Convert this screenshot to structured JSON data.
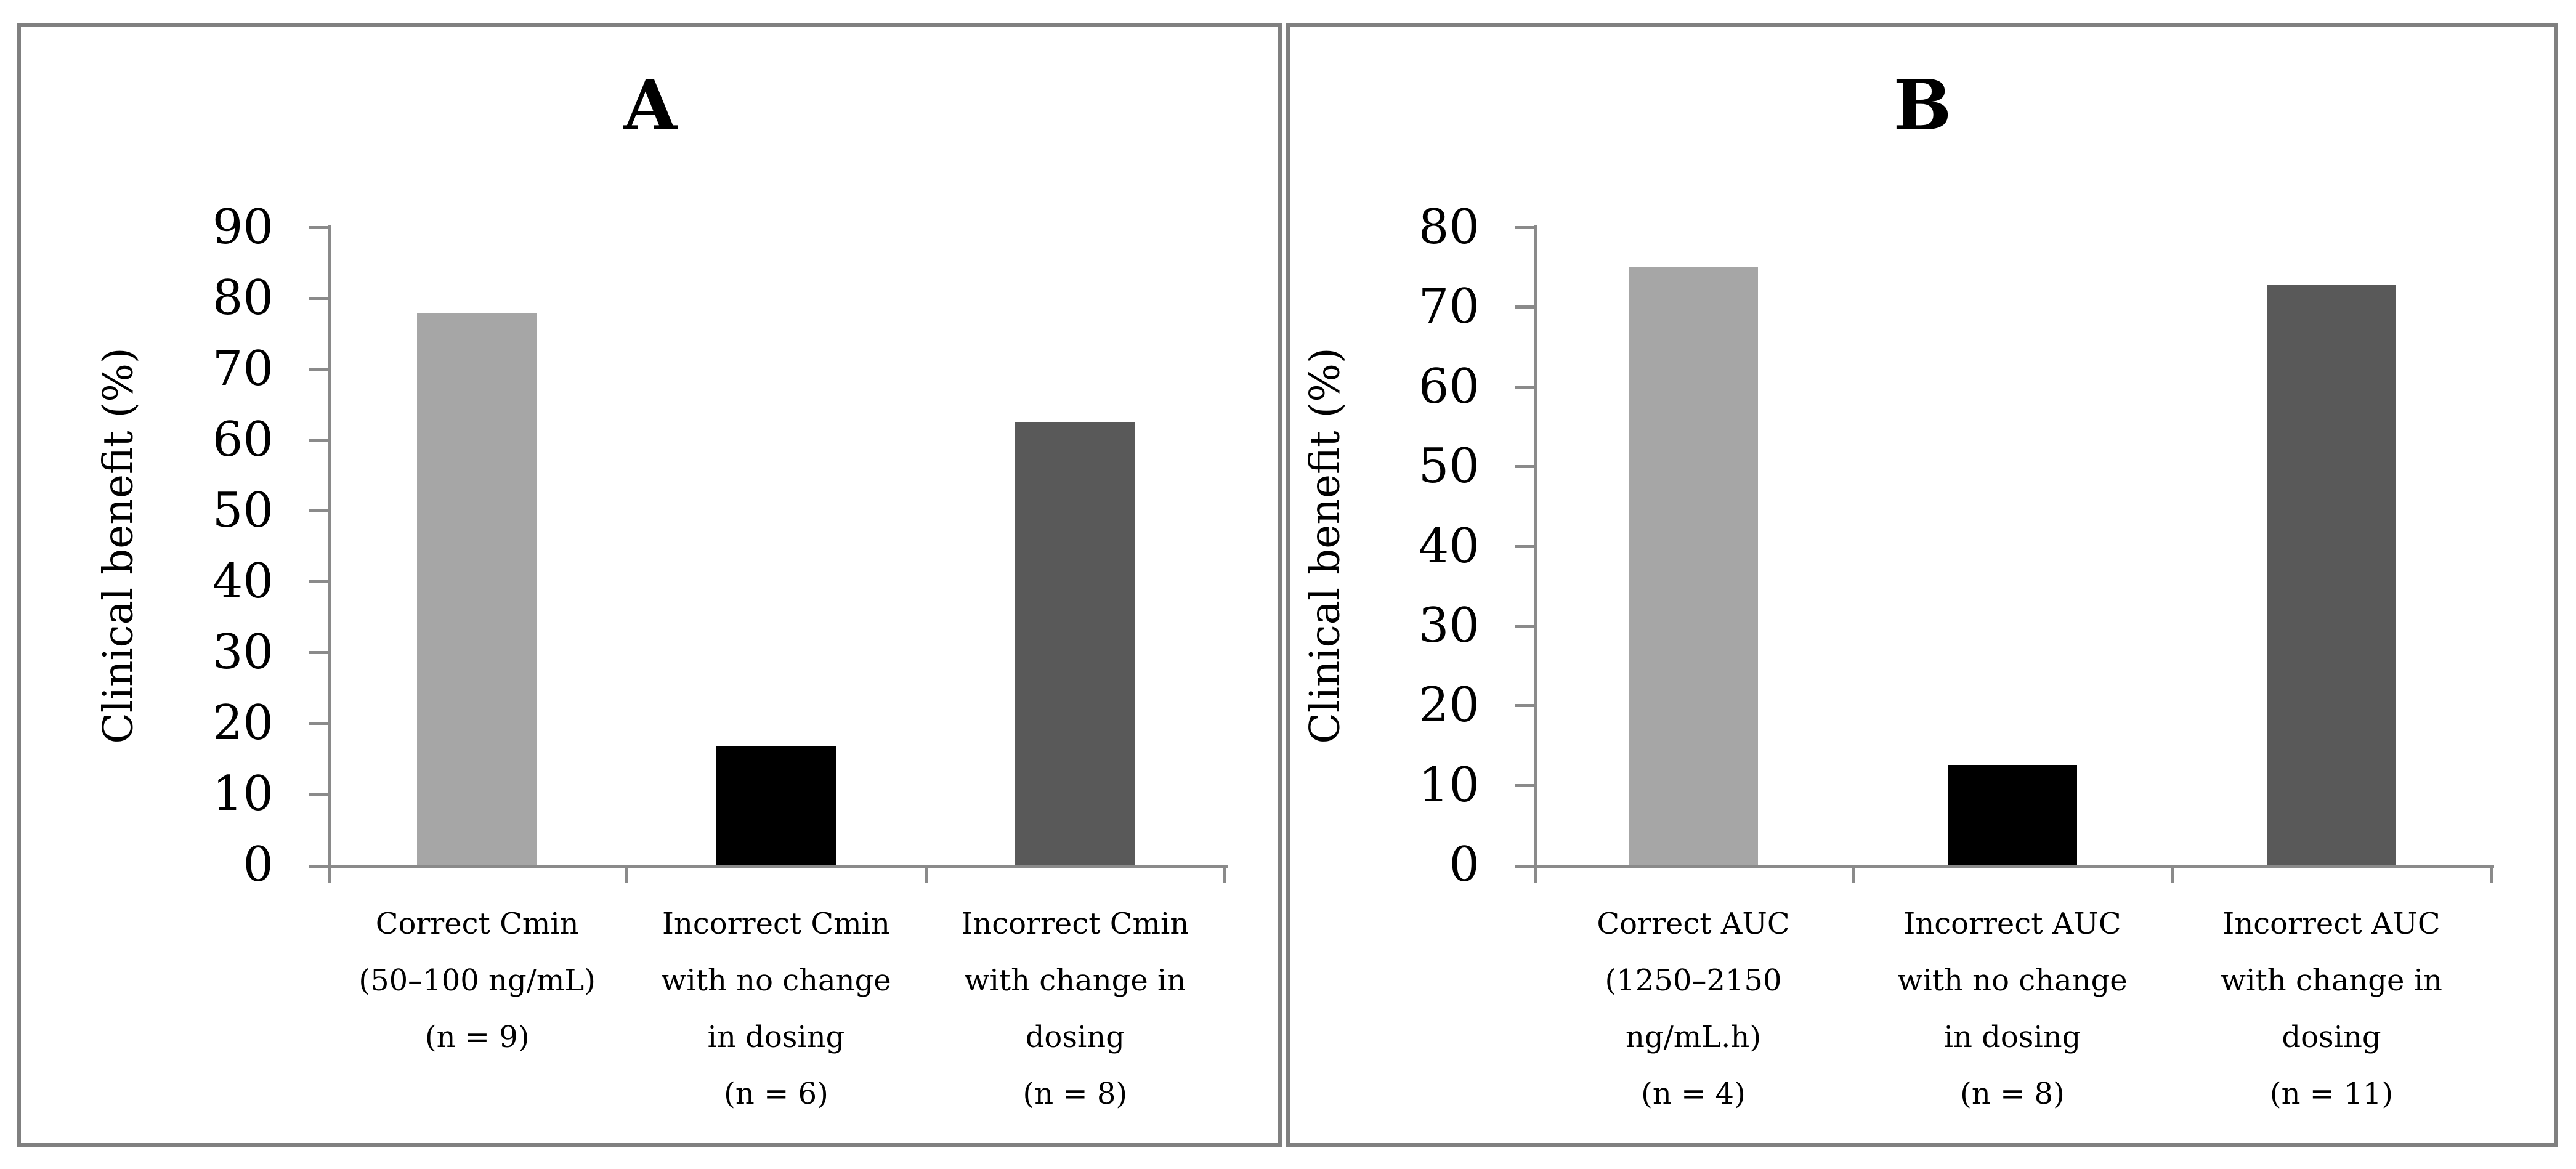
{
  "figure": {
    "background_color": "#ffffff",
    "panel_border_color": "#808080",
    "axis_color": "#8a8a8a"
  },
  "chart_data": [
    {
      "type": "bar",
      "panel_label": "A",
      "title": "A",
      "xlabel": "",
      "ylabel": "Clinical benefit (%)",
      "ylim": [
        0,
        90
      ],
      "ytick_step": 10,
      "yticks": [
        0,
        10,
        20,
        30,
        40,
        50,
        60,
        70,
        80,
        90
      ],
      "grid": false,
      "legend": "none",
      "categories": [
        {
          "label": "Correct Cmin (50–100 ng/mL) (n = 9)",
          "lines": [
            "Correct Cmin",
            "(50–100 ng/mL)",
            "(n = 9)"
          ]
        },
        {
          "label": "Incorrect Cmin with no change in dosing (n = 6)",
          "lines": [
            "Incorrect Cmin",
            "with no change",
            "in dosing",
            "(n = 6)"
          ]
        },
        {
          "label": "Incorrect Cmin with change in dosing (n = 8)",
          "lines": [
            "Incorrect Cmin",
            "with change in",
            "dosing",
            "(n = 8)"
          ]
        }
      ],
      "values": [
        77.8,
        16.7,
        62.5
      ],
      "bar_colors": [
        "#a6a6a6",
        "#000000",
        "#595959"
      ]
    },
    {
      "type": "bar",
      "panel_label": "B",
      "title": "B",
      "xlabel": "",
      "ylabel": "Clinical benefit (%)",
      "ylim": [
        0,
        80
      ],
      "ytick_step": 10,
      "yticks": [
        0,
        10,
        20,
        30,
        40,
        50,
        60,
        70,
        80
      ],
      "grid": false,
      "legend": "none",
      "categories": [
        {
          "label": "Correct AUC (1250–2150 ng/mL.h) (n = 4)",
          "lines": [
            "Correct AUC",
            "(1250–2150",
            "ng/mL.h)",
            "(n = 4)"
          ]
        },
        {
          "label": "Incorrect AUC with no change in dosing (n = 8)",
          "lines": [
            "Incorrect AUC",
            "with no change",
            "in dosing",
            "(n = 8)"
          ]
        },
        {
          "label": "Incorrect AUC with change in dosing (n = 11)",
          "lines": [
            "Incorrect AUC",
            "with change in",
            "dosing",
            "(n = 11)"
          ]
        }
      ],
      "values": [
        75,
        12.5,
        72.7
      ],
      "bar_colors": [
        "#a6a6a6",
        "#000000",
        "#595959"
      ]
    }
  ]
}
